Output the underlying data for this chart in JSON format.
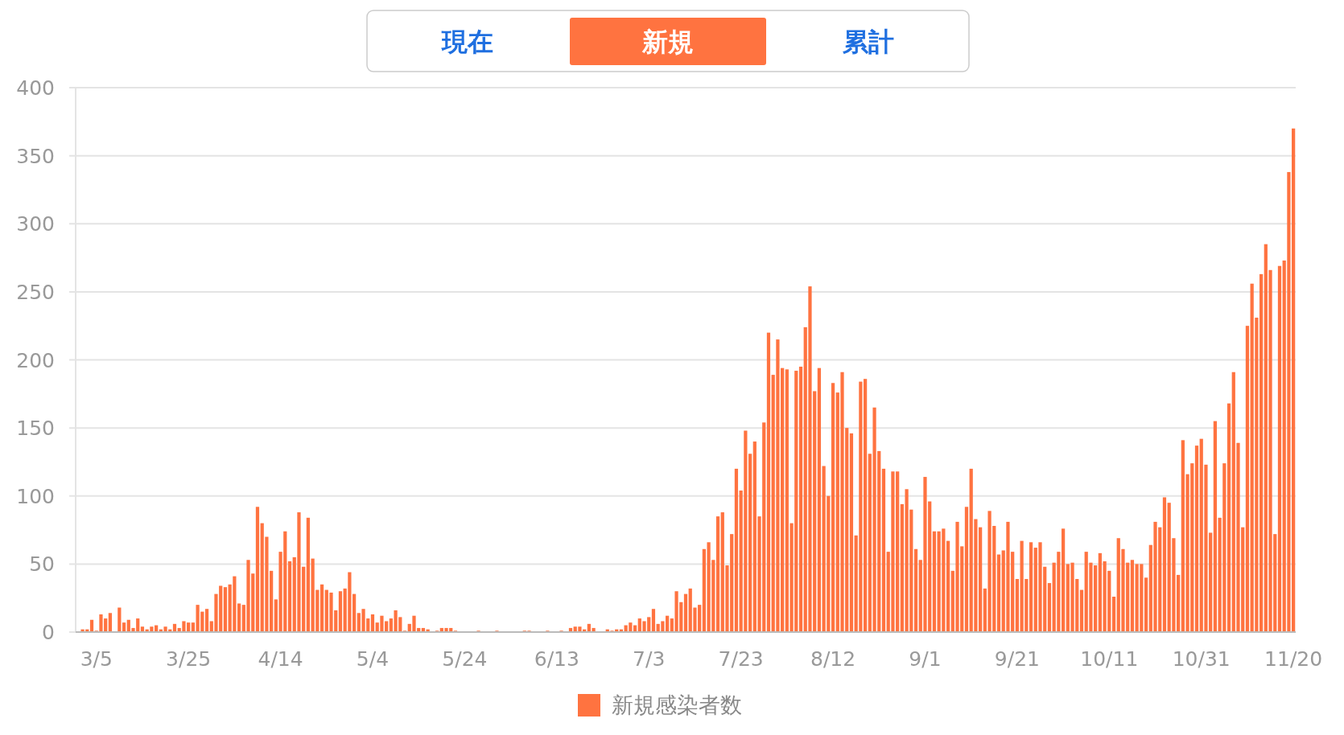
{
  "chart_data": {
    "type": "bar",
    "categories": [
      null,
      null,
      null,
      null,
      "3/5",
      null,
      null,
      null,
      null,
      null,
      null,
      null,
      null,
      null,
      null,
      null,
      null,
      null,
      null,
      null,
      null,
      null,
      null,
      null,
      "3/25",
      null,
      null,
      null,
      null,
      null,
      null,
      null,
      null,
      null,
      null,
      null,
      null,
      null,
      null,
      null,
      null,
      null,
      null,
      null,
      "4/14",
      null,
      null,
      null,
      null,
      null,
      null,
      null,
      null,
      null,
      null,
      null,
      null,
      null,
      null,
      null,
      null,
      null,
      null,
      null,
      "5/4",
      null,
      null,
      null,
      null,
      null,
      null,
      null,
      null,
      null,
      null,
      null,
      null,
      null,
      null,
      null,
      null,
      null,
      null,
      null,
      "5/24",
      null,
      null,
      null,
      null,
      null,
      null,
      null,
      null,
      null,
      null,
      null,
      null,
      null,
      null,
      null,
      null,
      null,
      null,
      null,
      "6/13",
      null,
      null,
      null,
      null,
      null,
      null,
      null,
      null,
      null,
      null,
      null,
      null,
      null,
      null,
      null,
      null,
      null,
      null,
      null,
      "7/3",
      null,
      null,
      null,
      null,
      null,
      null,
      null,
      null,
      null,
      null,
      null,
      null,
      null,
      null,
      null,
      null,
      null,
      null,
      null,
      "7/23",
      null,
      null,
      null,
      null,
      null,
      null,
      null,
      null,
      null,
      null,
      null,
      null,
      null,
      null,
      null,
      null,
      null,
      null,
      null,
      "8/12",
      null,
      null,
      null,
      null,
      null,
      null,
      null,
      null,
      null,
      null,
      null,
      null,
      null,
      null,
      null,
      null,
      null,
      null,
      null,
      "9/1",
      null,
      null,
      null,
      null,
      null,
      null,
      null,
      null,
      null,
      null,
      null,
      null,
      null,
      null,
      null,
      null,
      null,
      null,
      null,
      "9/21",
      null,
      null,
      null,
      null,
      null,
      null,
      null,
      null,
      null,
      null,
      null,
      null,
      null,
      null,
      null,
      null,
      null,
      null,
      null,
      "10/11",
      null,
      null,
      null,
      null,
      null,
      null,
      null,
      null,
      null,
      null,
      null,
      null,
      null,
      null,
      null,
      null,
      null,
      null,
      null,
      "10/31",
      null,
      null,
      null,
      null,
      null,
      null,
      null,
      null,
      null,
      null,
      null,
      null,
      null,
      null,
      null,
      null,
      null,
      null,
      null,
      "11/20"
    ],
    "series": [
      {
        "name": "新規感染者数",
        "color": "#ff7340",
        "values": [
          0,
          2,
          2,
          9,
          1,
          13,
          10,
          14,
          0,
          18,
          7,
          9,
          3,
          10,
          4,
          2,
          4,
          5,
          2,
          4,
          2,
          6,
          3,
          8,
          7,
          7,
          20,
          15,
          17,
          8,
          28,
          34,
          33,
          35,
          41,
          21,
          20,
          53,
          43,
          92,
          80,
          70,
          45,
          24,
          59,
          74,
          52,
          55,
          88,
          48,
          84,
          54,
          31,
          35,
          31,
          29,
          16,
          30,
          32,
          44,
          28,
          14,
          17,
          10,
          13,
          7,
          12,
          8,
          10,
          16,
          11,
          1,
          6,
          12,
          3,
          3,
          2,
          0,
          1,
          3,
          3,
          3,
          1,
          0,
          0,
          0,
          0,
          1,
          0,
          0,
          0,
          1,
          0,
          0,
          0,
          0,
          0,
          1,
          1,
          0,
          0,
          0,
          1,
          0,
          0,
          1,
          0,
          3,
          4,
          4,
          2,
          6,
          3,
          0,
          0,
          2,
          1,
          2,
          2,
          5,
          7,
          5,
          10,
          8,
          11,
          17,
          6,
          8,
          12,
          10,
          30,
          22,
          28,
          32,
          18,
          20,
          61,
          66,
          53,
          85,
          88,
          49,
          72,
          120,
          104,
          148,
          131,
          140,
          85,
          154,
          220,
          189,
          215,
          194,
          193,
          80,
          192,
          195,
          224,
          254,
          177,
          194,
          122,
          100,
          183,
          176,
          191,
          150,
          146,
          71,
          184,
          186,
          131,
          165,
          133,
          120,
          59,
          118,
          118,
          94,
          105,
          90,
          61,
          53,
          114,
          96,
          74,
          74,
          76,
          67,
          45,
          81,
          63,
          92,
          120,
          83,
          77,
          32,
          89,
          78,
          57,
          60,
          81,
          59,
          39,
          67,
          39,
          66,
          62,
          66,
          48,
          36,
          51,
          59,
          76,
          50,
          51,
          39,
          31,
          59,
          51,
          49,
          58,
          52,
          45,
          26,
          69,
          61,
          51,
          53,
          50,
          50,
          40,
          64,
          81,
          77,
          99,
          95,
          69,
          42,
          141,
          116,
          124,
          137,
          142,
          123,
          73,
          155,
          84,
          124,
          168,
          191,
          139,
          77,
          225,
          256,
          231,
          263,
          285,
          266,
          72,
          269,
          273,
          338,
          370
        ]
      }
    ],
    "ylim": [
      0,
      400
    ],
    "yticks": [
      0,
      50,
      100,
      150,
      200,
      250,
      300,
      350,
      400
    ],
    "grid": "y",
    "legend": "bottom",
    "annotations": [
      "現在",
      "新規",
      "累計"
    ]
  }
}
